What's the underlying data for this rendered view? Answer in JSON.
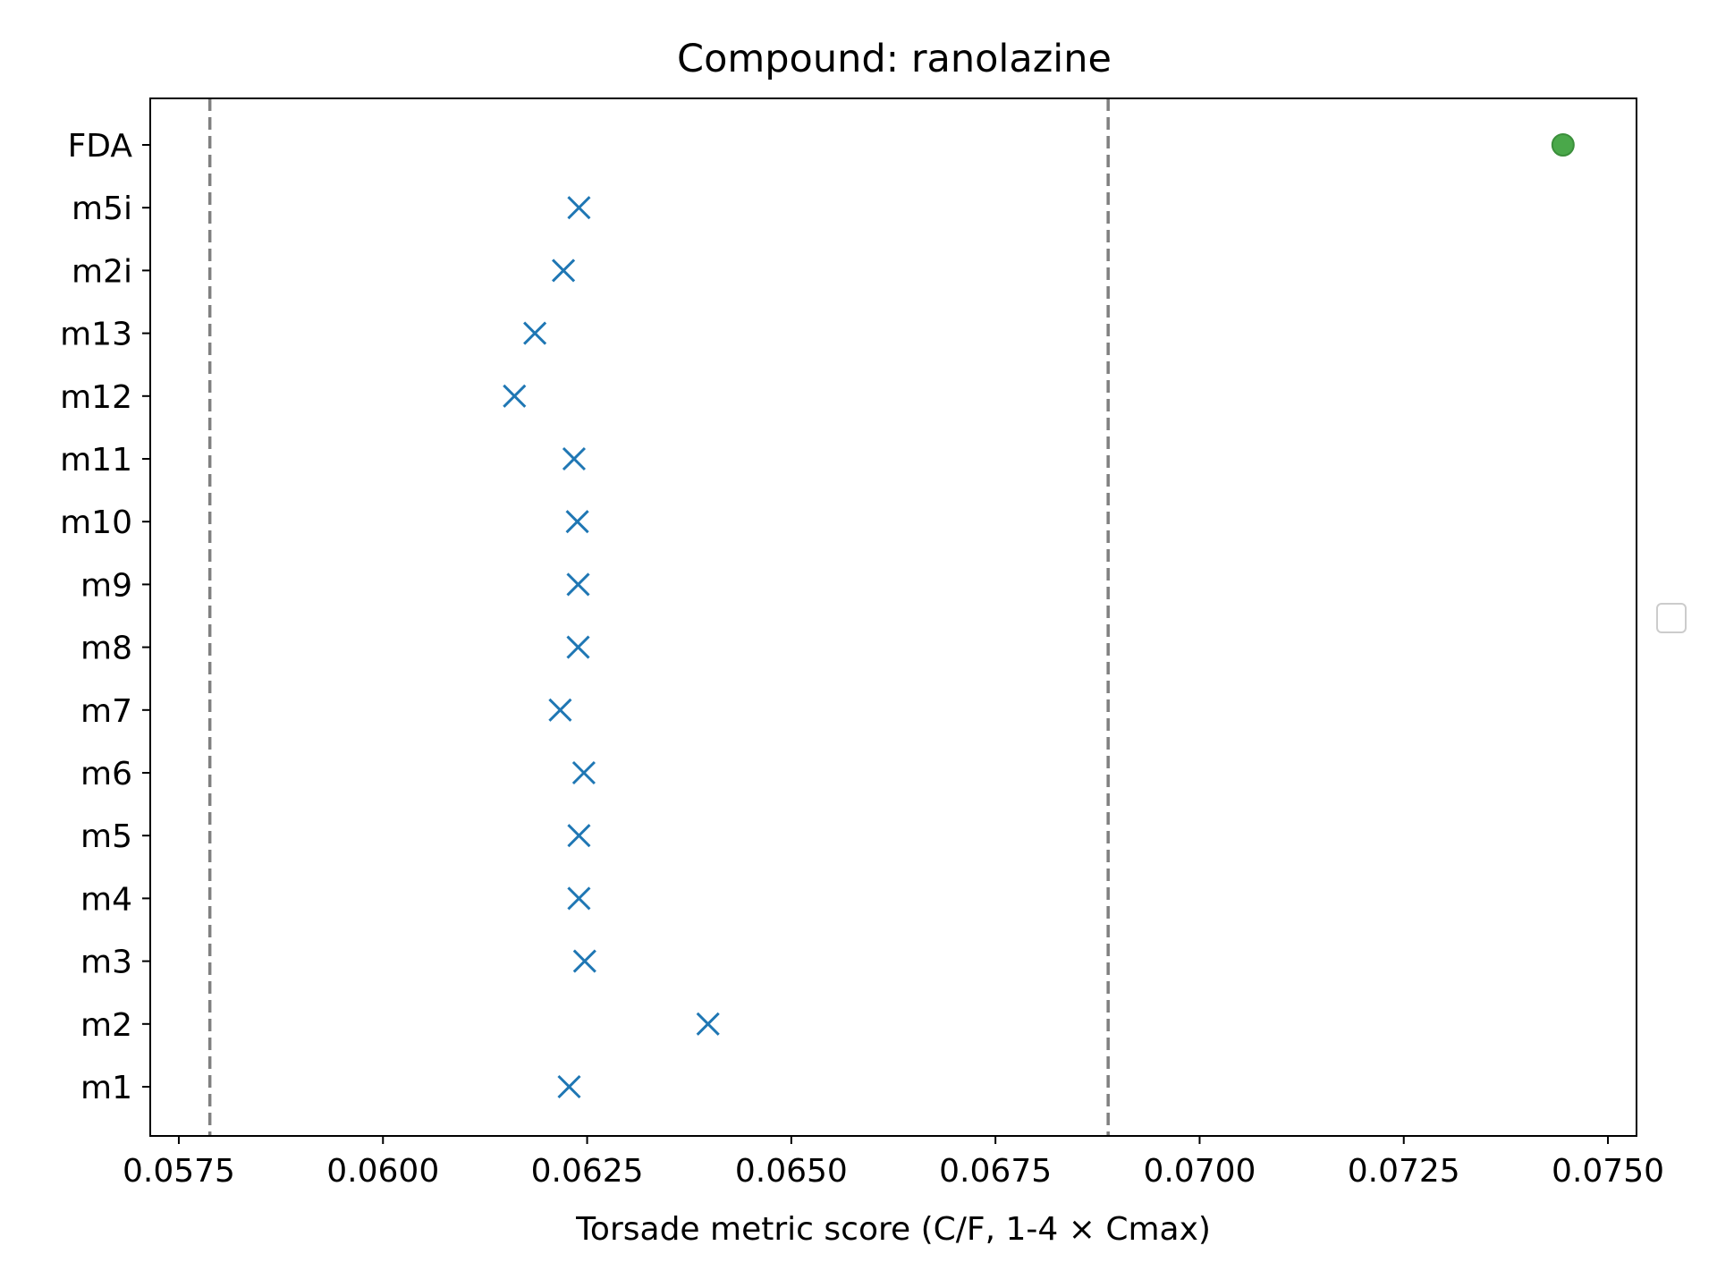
{
  "chart_data": {
    "type": "scatter",
    "title": "Compound: ranolazine",
    "xlabel": "Torsade metric score (C/F, 1-4 × Cmax)",
    "ylabel": "",
    "xlim": [
      0.05715,
      0.07535
    ],
    "xticks": [
      0.0575,
      0.06,
      0.0625,
      0.065,
      0.0675,
      0.07,
      0.0725,
      0.075
    ],
    "xtick_labels": [
      "0.0575",
      "0.0600",
      "0.0625",
      "0.0650",
      "0.0675",
      "0.0700",
      "0.0725",
      "0.0750"
    ],
    "categories": [
      "m1",
      "m2",
      "m3",
      "m4",
      "m5",
      "m6",
      "m7",
      "m8",
      "m9",
      "m10",
      "m11",
      "m12",
      "m13",
      "m2i",
      "m5i",
      "FDA"
    ],
    "grid": false,
    "series": [
      {
        "marker": "x",
        "color": "#1f77b4",
        "points": [
          {
            "category": "m1",
            "x": 0.06228
          },
          {
            "category": "m2",
            "x": 0.06398
          },
          {
            "category": "m3",
            "x": 0.06247
          },
          {
            "category": "m4",
            "x": 0.0624
          },
          {
            "category": "m5",
            "x": 0.0624
          },
          {
            "category": "m6",
            "x": 0.06246
          },
          {
            "category": "m7",
            "x": 0.06217
          },
          {
            "category": "m8",
            "x": 0.06239
          },
          {
            "category": "m9",
            "x": 0.06239
          },
          {
            "category": "m10",
            "x": 0.06238
          },
          {
            "category": "m11",
            "x": 0.06234
          },
          {
            "category": "m12",
            "x": 0.06161
          },
          {
            "category": "m13",
            "x": 0.06186
          },
          {
            "category": "m2i",
            "x": 0.06221
          },
          {
            "category": "m5i",
            "x": 0.0624
          }
        ]
      },
      {
        "marker": "circle",
        "color": "#4aa84a",
        "points": [
          {
            "category": "FDA",
            "x": 0.07445
          }
        ]
      }
    ],
    "reference_lines": [
      {
        "x": 0.05788,
        "style": "dashed",
        "color": "#808080"
      },
      {
        "x": 0.06888,
        "style": "dashed",
        "color": "#808080"
      }
    ],
    "legend": {
      "placement": "center-right",
      "entries": []
    }
  }
}
